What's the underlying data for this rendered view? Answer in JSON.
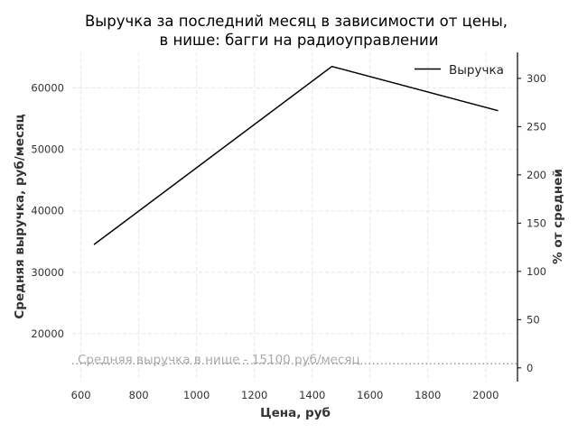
{
  "chart_data": {
    "type": "line",
    "title_line1": "Выручка за последний месяц в зависимости от цены,",
    "title_line2": "в нише: багги на радиоуправлении",
    "xlabel": "Цена, руб",
    "ylabel": "Средняя выручка, руб/месяц",
    "y2label": "% от средней",
    "xlim": [
      570,
      2110
    ],
    "ylim": [
      12200,
      65800
    ],
    "y2lim": [
      -14.2,
      327
    ],
    "x_ticks": [
      600,
      800,
      1000,
      1200,
      1400,
      1600,
      1800,
      2000
    ],
    "y_ticks": [
      20000,
      30000,
      40000,
      50000,
      60000
    ],
    "y2_ticks": [
      0,
      50,
      100,
      150,
      200,
      250,
      300
    ],
    "grid": true,
    "legend_position": "top-right",
    "series": [
      {
        "name": "Выручка",
        "color": "#000000",
        "x": [
          645,
          1468,
          2043
        ],
        "y": [
          34500,
          63500,
          56300
        ]
      }
    ],
    "average": {
      "value": 15100,
      "label": "Средняя выручка в нише - 15100 руб/месяц",
      "color": "#999999"
    }
  }
}
